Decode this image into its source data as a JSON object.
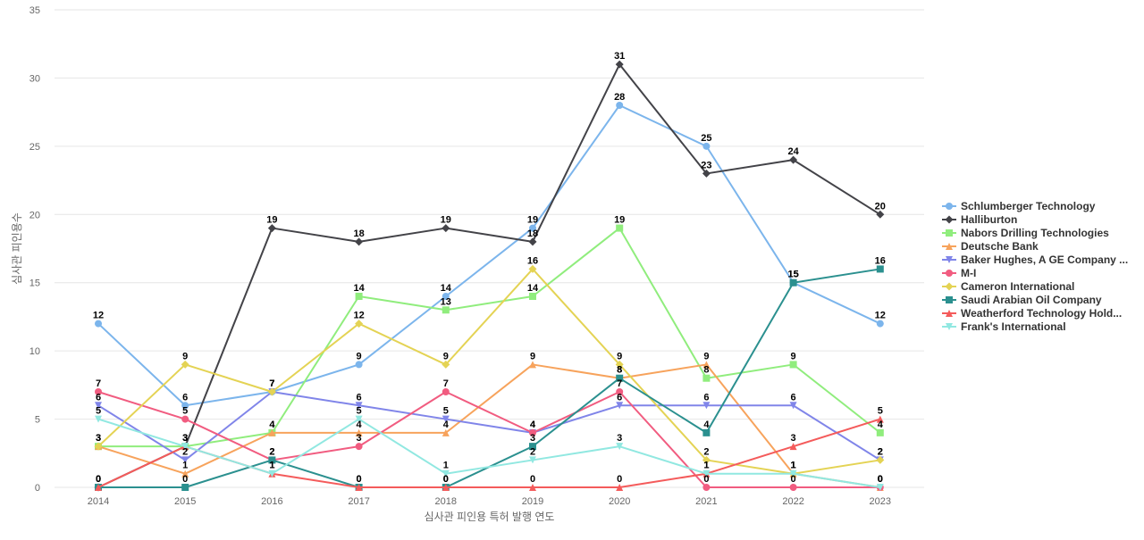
{
  "chart_data": {
    "type": "line",
    "xlabel": "심사관 피인용 특허 발행 연도",
    "ylabel": "심사관 피인용수",
    "ylim": [
      0,
      35
    ],
    "yticks": [
      0,
      5,
      10,
      15,
      20,
      25,
      30,
      35
    ],
    "categories": [
      "2014",
      "2015",
      "2016",
      "2017",
      "2018",
      "2019",
      "2020",
      "2021",
      "2022",
      "2023"
    ],
    "grid": true,
    "legend_position": "right",
    "series": [
      {
        "name": "Schlumberger Technology",
        "color": "#7cb5ec",
        "marker": "circle",
        "values": [
          12,
          6,
          7,
          9,
          14,
          19,
          28,
          25,
          15,
          12
        ]
      },
      {
        "name": "Halliburton",
        "color": "#434348",
        "marker": "diamond",
        "values": [
          0,
          3,
          19,
          18,
          19,
          18,
          31,
          23,
          24,
          20
        ]
      },
      {
        "name": "Nabors Drilling Technologies",
        "color": "#90ed7d",
        "marker": "square",
        "values": [
          3,
          3,
          4,
          14,
          13,
          14,
          19,
          8,
          9,
          4
        ]
      },
      {
        "name": "Deutsche Bank",
        "color": "#f7a35c",
        "marker": "triangle",
        "values": [
          3,
          1,
          4,
          4,
          4,
          9,
          8,
          9,
          1,
          0
        ]
      },
      {
        "name": "Baker Hughes, A GE Company ...",
        "color": "#8085e9",
        "marker": "triangle-down",
        "values": [
          6,
          2,
          7,
          6,
          5,
          4,
          6,
          6,
          6,
          2
        ]
      },
      {
        "name": "M-I",
        "color": "#f15c80",
        "marker": "circle",
        "values": [
          7,
          5,
          2,
          3,
          7,
          4,
          7,
          0,
          0,
          0
        ]
      },
      {
        "name": "Cameron International",
        "color": "#e4d354",
        "marker": "diamond",
        "values": [
          3,
          9,
          7,
          12,
          9,
          16,
          9,
          2,
          1,
          2
        ]
      },
      {
        "name": "Saudi Arabian Oil Company",
        "color": "#2b908f",
        "marker": "square",
        "values": [
          0,
          0,
          2,
          0,
          0,
          3,
          8,
          4,
          15,
          16
        ]
      },
      {
        "name": "Weatherford Technology Hold...",
        "color": "#f45b5b",
        "marker": "triangle",
        "values": [
          0,
          3,
          1,
          0,
          0,
          0,
          0,
          1,
          3,
          5
        ]
      },
      {
        "name": "Frank's International",
        "color": "#91e8e1",
        "marker": "triangle-down",
        "values": [
          5,
          3,
          1,
          5,
          1,
          2,
          3,
          1,
          1,
          0
        ]
      }
    ]
  }
}
